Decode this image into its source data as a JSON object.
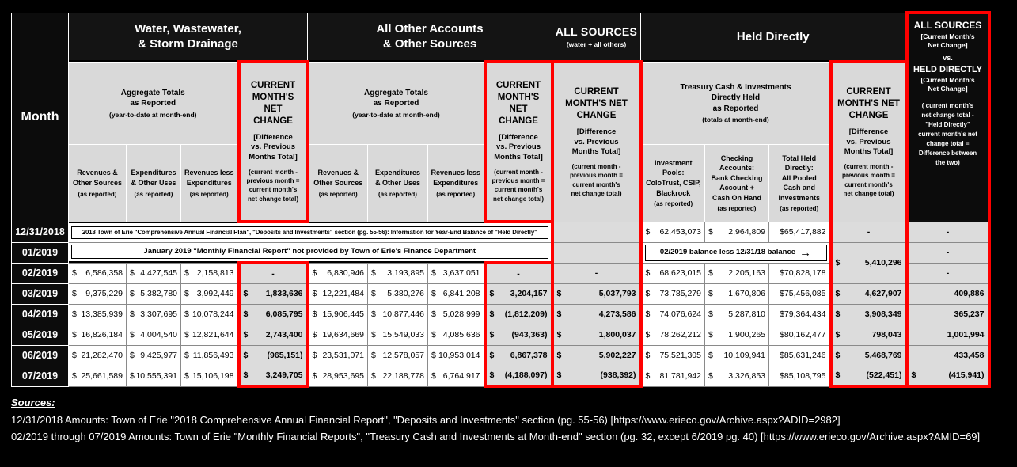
{
  "table": {
    "month_header": "Month",
    "groups": {
      "water": {
        "title": "Water, Wastewater,\n& Storm Drainage"
      },
      "other": {
        "title": "All Other Accounts\n& Other Sources"
      },
      "all_sources": {
        "title": "ALL SOURCES",
        "subtitle": "(water + all others)"
      },
      "held": {
        "title": "Held Directly"
      }
    },
    "aggregate_header": {
      "line1": "Aggregate Totals\nas Reported",
      "line2": "(year-to-date at month-end)"
    },
    "treasury_header": {
      "line1": "Treasury Cash & Investments\nDirectly Held\nas Reported",
      "line2": "(totals at month-end)"
    },
    "net_change_header": {
      "main_narrow": "CURRENT\nMONTH'S\nNET\nCHANGE",
      "main_wide": "CURRENT\nMONTH'S NET\nCHANGE",
      "diff": "[Difference\nvs. Previous\nMonths Total]",
      "formula": "(current month -\nprevious month =\ncurrent month's\nnet change total)"
    },
    "vs_header": {
      "title1": "ALL SOURCES",
      "sub1": "[Current Month's\nNet Change]",
      "vs": "vs.",
      "title2": "HELD DIRECTLY",
      "sub2": "[Current Month's\nNet Change]",
      "formula": "( current month's\nnet change total  -\n\"Held Directly\"\ncurrent month's net\nchange total =\nDifference between\nthe two)"
    },
    "col_headers": {
      "revenues": {
        "name": "Revenues &\nOther Sources",
        "note": "(as reported)"
      },
      "expenditures": {
        "name": "Expenditures\n& Other Uses",
        "note": "(as reported)"
      },
      "rev_less_exp": {
        "name": "Revenues less\nExpenditures",
        "note": "(as reported)"
      },
      "investment_pools": {
        "name": "Investment\nPools:\nColoTrust, CSIP,\nBlackrock",
        "note": "(as reported)"
      },
      "checking": {
        "name": "Checking\nAccounts:\nBank Checking\nAccount +\nCash On Hand",
        "note": "(as reported)"
      },
      "total_held": {
        "name": "Total Held\nDirectly:\nAll Pooled\nCash and\nInvestments",
        "note": "(as reported)"
      }
    },
    "notes": {
      "dec2018": "2018 Town of Erie \"Comprehensive Annual Financial Plan\", \"Deposits and Investments\" section (pg. 55-56): Information for Year-End Balance of \"Held Directly\"",
      "jan2019": "January 2019 \"Monthly Financial Report\" not provided by Town of Erie's Finance Department",
      "balance": "02/2019 balance less 12/31/18 balance",
      "balance_arrow": "→"
    },
    "rows": [
      {
        "month": "12/31/2018",
        "cells": [
          {
            "t": "noteref",
            "ref": "dec2018",
            "cs": 8,
            "long": true
          },
          {
            "t": "empty",
            "red": true
          },
          {
            "t": "acct",
            "p": "$",
            "v": "62,453,073"
          },
          {
            "t": "acct",
            "p": "$",
            "v": "2,964,809"
          },
          {
            "t": "cur",
            "v": "$65,417,882"
          },
          {
            "t": "dash",
            "red": true
          },
          {
            "t": "dash",
            "red": true
          }
        ]
      },
      {
        "month": "01/2019",
        "cells": [
          {
            "t": "noteref",
            "ref": "jan2019",
            "cs": 8
          },
          {
            "t": "empty",
            "red": true
          },
          {
            "t": "balref",
            "ref": "balance",
            "cs": 3
          },
          {
            "t": "acct",
            "p": "$",
            "v": "5,410,296",
            "rs": 2,
            "red": true
          },
          {
            "t": "dash",
            "red": true
          }
        ]
      },
      {
        "month": "02/2019",
        "cells": [
          {
            "t": "acct",
            "p": "$",
            "v": "6,586,358"
          },
          {
            "t": "acct",
            "p": "$",
            "v": "4,427,545"
          },
          {
            "t": "acct",
            "p": "$",
            "v": "2,158,813"
          },
          {
            "t": "dash",
            "red": true,
            "rt": true
          },
          {
            "t": "acct",
            "p": "$",
            "v": "6,830,946"
          },
          {
            "t": "acct",
            "p": "$",
            "v": "3,193,895"
          },
          {
            "t": "acct",
            "p": "$",
            "v": "3,637,051"
          },
          {
            "t": "dash",
            "red": true,
            "rt": true
          },
          {
            "t": "dash",
            "red": true
          },
          {
            "t": "acct",
            "p": "$",
            "v": "68,623,015"
          },
          {
            "t": "acct",
            "p": "$",
            "v": "2,205,163"
          },
          {
            "t": "cur",
            "v": "$70,828,178"
          },
          {
            "t": "dash",
            "red": true
          }
        ]
      },
      {
        "month": "03/2019",
        "cells": [
          {
            "t": "acct",
            "p": "$",
            "v": "9,375,229"
          },
          {
            "t": "acct",
            "p": "$",
            "v": "5,382,780"
          },
          {
            "t": "acct",
            "p": "$",
            "v": "3,992,449"
          },
          {
            "t": "acct",
            "p": "$",
            "v": "1,833,636",
            "red": true
          },
          {
            "t": "acct",
            "p": "$",
            "v": "12,221,484"
          },
          {
            "t": "acct",
            "p": "$",
            "v": "5,380,276"
          },
          {
            "t": "acct",
            "p": "$",
            "v": "6,841,208"
          },
          {
            "t": "acct",
            "p": "$",
            "v": "3,204,157",
            "red": true
          },
          {
            "t": "acct",
            "p": "$",
            "v": "5,037,793",
            "red": true
          },
          {
            "t": "acct",
            "p": "$",
            "v": "73,785,279"
          },
          {
            "t": "acct",
            "p": "$",
            "v": "1,670,806"
          },
          {
            "t": "cur",
            "v": "$75,456,085"
          },
          {
            "t": "acct",
            "p": "$",
            "v": "4,627,907",
            "red": true
          },
          {
            "t": "acct",
            "p": "",
            "v": "409,886",
            "red": true
          }
        ]
      },
      {
        "month": "04/2019",
        "cells": [
          {
            "t": "acct",
            "p": "$",
            "v": "13,385,939"
          },
          {
            "t": "acct",
            "p": "$",
            "v": "3,307,695"
          },
          {
            "t": "acct",
            "p": "$",
            "v": "10,078,244"
          },
          {
            "t": "acct",
            "p": "$",
            "v": "6,085,795",
            "red": true
          },
          {
            "t": "acct",
            "p": "$",
            "v": "15,906,445"
          },
          {
            "t": "acct",
            "p": "$",
            "v": "10,877,446"
          },
          {
            "t": "acct",
            "p": "$",
            "v": "5,028,999"
          },
          {
            "t": "acct",
            "p": "$",
            "v": "(1,812,209)",
            "red": true
          },
          {
            "t": "acct",
            "p": "$",
            "v": "4,273,586",
            "red": true
          },
          {
            "t": "acct",
            "p": "$",
            "v": "74,076,624"
          },
          {
            "t": "acct",
            "p": "$",
            "v": "5,287,810"
          },
          {
            "t": "cur",
            "v": "$79,364,434"
          },
          {
            "t": "acct",
            "p": "$",
            "v": "3,908,349",
            "red": true
          },
          {
            "t": "acct",
            "p": "",
            "v": "365,237",
            "red": true
          }
        ]
      },
      {
        "month": "05/2019",
        "cells": [
          {
            "t": "acct",
            "p": "$",
            "v": "16,826,184"
          },
          {
            "t": "acct",
            "p": "$",
            "v": "4,004,540"
          },
          {
            "t": "acct",
            "p": "$",
            "v": "12,821,644"
          },
          {
            "t": "acct",
            "p": "$",
            "v": "2,743,400",
            "red": true
          },
          {
            "t": "acct",
            "p": "$",
            "v": "19,634,669"
          },
          {
            "t": "acct",
            "p": "$",
            "v": "15,549,033"
          },
          {
            "t": "acct",
            "p": "$",
            "v": "4,085,636"
          },
          {
            "t": "acct",
            "p": "$",
            "v": "(943,363)",
            "red": true
          },
          {
            "t": "acct",
            "p": "$",
            "v": "1,800,037",
            "red": true
          },
          {
            "t": "acct",
            "p": "$",
            "v": "78,262,212"
          },
          {
            "t": "acct",
            "p": "$",
            "v": "1,900,265"
          },
          {
            "t": "cur",
            "v": "$80,162,477"
          },
          {
            "t": "acct",
            "p": "$",
            "v": "798,043",
            "red": true
          },
          {
            "t": "acct",
            "p": "",
            "v": "1,001,994",
            "red": true
          }
        ]
      },
      {
        "month": "06/2019",
        "cells": [
          {
            "t": "acct",
            "p": "$",
            "v": "21,282,470"
          },
          {
            "t": "acct",
            "p": "$",
            "v": "9,425,977"
          },
          {
            "t": "acct",
            "p": "$",
            "v": "11,856,493"
          },
          {
            "t": "acct",
            "p": "$",
            "v": "(965,151)",
            "red": true
          },
          {
            "t": "acct",
            "p": "$",
            "v": "23,531,071"
          },
          {
            "t": "acct",
            "p": "$",
            "v": "12,578,057"
          },
          {
            "t": "acct",
            "p": "$",
            "v": "10,953,014"
          },
          {
            "t": "acct",
            "p": "$",
            "v": "6,867,378",
            "red": true
          },
          {
            "t": "acct",
            "p": "$",
            "v": "5,902,227",
            "red": true
          },
          {
            "t": "acct",
            "p": "$",
            "v": "75,521,305"
          },
          {
            "t": "acct",
            "p": "$",
            "v": "10,109,941"
          },
          {
            "t": "cur",
            "v": "$85,631,246"
          },
          {
            "t": "acct",
            "p": "$",
            "v": "5,468,769",
            "red": true
          },
          {
            "t": "acct",
            "p": "",
            "v": "433,458",
            "red": true
          }
        ]
      },
      {
        "month": "07/2019",
        "cells": [
          {
            "t": "acct",
            "p": "$",
            "v": "25,661,589"
          },
          {
            "t": "acct",
            "p": "$",
            "v": "10,555,391"
          },
          {
            "t": "acct",
            "p": "$",
            "v": "15,106,198"
          },
          {
            "t": "acct",
            "p": "$",
            "v": "3,249,705",
            "red": true,
            "rb": true
          },
          {
            "t": "acct",
            "p": "$",
            "v": "28,953,695"
          },
          {
            "t": "acct",
            "p": "$",
            "v": "22,188,778"
          },
          {
            "t": "acct",
            "p": "$",
            "v": "6,764,917"
          },
          {
            "t": "acct",
            "p": "$",
            "v": "(4,188,097)",
            "red": true,
            "rb": true
          },
          {
            "t": "acct",
            "p": "$",
            "v": "(938,392)",
            "red": true,
            "rb": true
          },
          {
            "t": "acct",
            "p": "$",
            "v": "81,781,942"
          },
          {
            "t": "acct",
            "p": "$",
            "v": "3,326,853"
          },
          {
            "t": "cur",
            "v": "$85,108,795"
          },
          {
            "t": "acct",
            "p": "$",
            "v": "(522,451)",
            "red": true,
            "rb": true
          },
          {
            "t": "acct",
            "p": "$",
            "v": "(415,941)",
            "red": true,
            "rb": true
          }
        ]
      }
    ]
  },
  "sources": {
    "heading": "Sources:",
    "line1": "12/31/2018 Amounts: Town of Erie \"2018 Comprehensive Annual Financial Report\", \"Deposits and Investments\" section (pg. 55-56) [https://www.erieco.gov/Archive.aspx?ADID=2982]",
    "line2": "02/2019 through 07/2019 Amounts: Town of Erie \"Monthly Financial Reports\", \"Treasury Cash and Investments at Month-end\" section (pg. 32, except 6/2019 pg. 40)  [https://www.erieco.gov/Archive.aspx?AMID=69]"
  },
  "colors": {
    "red_accent": "#FF0000",
    "header_gray": "#D9D9D9",
    "net_change_cell_gray": "#DCDCDC",
    "background": "#000000"
  }
}
